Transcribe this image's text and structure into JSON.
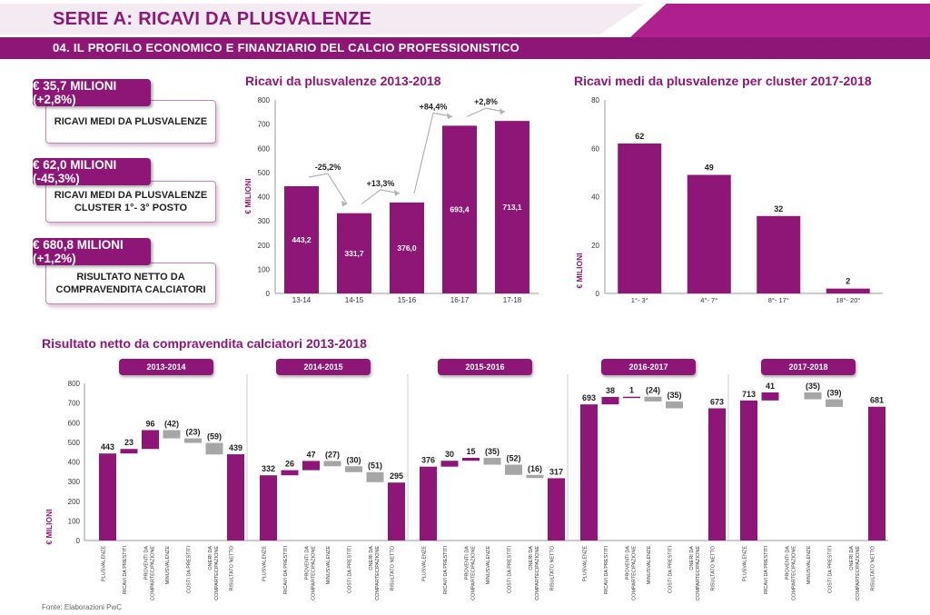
{
  "header": {
    "title": "SERIE A: RICAVI DA PLUSVALENZE",
    "subtitle": "04. IL PROFILO ECONOMICO E FINANZIARIO DEL CALCIO PROFESSIONISTICO"
  },
  "kpis": [
    {
      "value": "€ 35,7 MILIONI (+2,8%)",
      "label": "RICAVI MEDI DA PLUSVALENZE"
    },
    {
      "value": "€ 62,0 MILIONI (-45,3%)",
      "label_line1": "RICAVI MEDI DA PLUSVALENZE",
      "label_line2": "CLUSTER 1°- 3° POSTO"
    },
    {
      "value": "€ 680,8 MILIONI (+1,2%)",
      "label_line1": "RISULTATO NETTO DA",
      "label_line2": "COMPRAVENDITA CALCIATORI"
    }
  ],
  "colors": {
    "primary": "#8e1677",
    "bar": "#8e1677",
    "negative": "#a6a6a6",
    "light": "#f4eaf2"
  },
  "footer": "Fonte: Elaborazioni PwC",
  "chart_data": [
    {
      "type": "bar",
      "title": "Ricavi da plusvalenze 2013-2018",
      "ylabel": "€ MILIONI",
      "ylim": [
        0,
        800
      ],
      "yticks": [
        0,
        100,
        200,
        300,
        400,
        500,
        600,
        700,
        800
      ],
      "categories": [
        "13-14",
        "14-15",
        "15-16",
        "16-17",
        "17-18"
      ],
      "values": [
        443.2,
        331.7,
        376.0,
        693.4,
        713.1
      ],
      "value_labels": [
        "443,2",
        "331,7",
        "376,0",
        "693,4",
        "713,1"
      ],
      "changes": [
        "-25,2%",
        "+13,3%",
        "+84,4%",
        "+2,8%"
      ]
    },
    {
      "type": "bar",
      "title": "Ricavi medi da plusvalenze per cluster 2017-2018",
      "ylabel": "€ MILIONI",
      "ylim": [
        0,
        80
      ],
      "yticks": [
        0,
        20,
        40,
        60,
        80
      ],
      "categories": [
        "1°- 3°",
        "4°- 7°",
        "8°- 17°",
        "18°- 20°"
      ],
      "values": [
        62,
        49,
        32,
        2
      ],
      "value_labels": [
        "62",
        "49",
        "32",
        "2"
      ]
    },
    {
      "type": "waterfall",
      "title": "Risultato netto da compravendita calciatori 2013-2018",
      "ylabel": "€ MILIONI",
      "ylim": [
        0,
        800
      ],
      "yticks": [
        0,
        100,
        200,
        300,
        400,
        500,
        600,
        700,
        800
      ],
      "categories": [
        "PLUSVALENZE",
        "RICAVI DA PRESTITI",
        "PROVENTI DA COMPARTECIPAZIONE",
        "MINUSVALENZE",
        "COSTI DA PRESTITI",
        "ONERI DA COMPARTECIPAZIONE",
        "RISULTATO NETTO"
      ],
      "category_lines": [
        [
          "PLUSVALENZE"
        ],
        [
          "RICAVI DA PRESTITI"
        ],
        [
          "PROVENTI DA",
          "COMPARTECIPAZIONE"
        ],
        [
          "MINUSVALENZE"
        ],
        [
          "COSTI DA PRESTITI"
        ],
        [
          "ONERI DA",
          "COMPARTECIPAZIONE"
        ],
        [
          "RISULTATO NETTO"
        ]
      ],
      "panels": [
        {
          "season": "2013-2014",
          "values": [
            443,
            23,
            96,
            -42,
            -23,
            -59,
            439
          ],
          "labels": [
            "443",
            "23",
            "96",
            "(42)",
            "(23)",
            "(59)",
            "439"
          ]
        },
        {
          "season": "2014-2015",
          "values": [
            332,
            26,
            47,
            -27,
            -30,
            -51,
            295
          ],
          "labels": [
            "332",
            "26",
            "47",
            "(27)",
            "(30)",
            "(51)",
            "295"
          ]
        },
        {
          "season": "2015-2016",
          "values": [
            376,
            30,
            15,
            -35,
            -52,
            -16,
            317
          ],
          "labels": [
            "376",
            "30",
            "15",
            "(35)",
            "(52)",
            "(16)",
            "317"
          ]
        },
        {
          "season": "2016-2017",
          "values": [
            693,
            38,
            1,
            -24,
            -35,
            0,
            673
          ],
          "labels": [
            "693",
            "38",
            "1",
            "(24)",
            "(35)",
            "",
            "673"
          ]
        },
        {
          "season": "2017-2018",
          "values": [
            713,
            41,
            0,
            -35,
            -39,
            0,
            681
          ],
          "labels": [
            "713",
            "41",
            "",
            "(35)",
            "(39)",
            "",
            "681"
          ]
        }
      ]
    }
  ]
}
